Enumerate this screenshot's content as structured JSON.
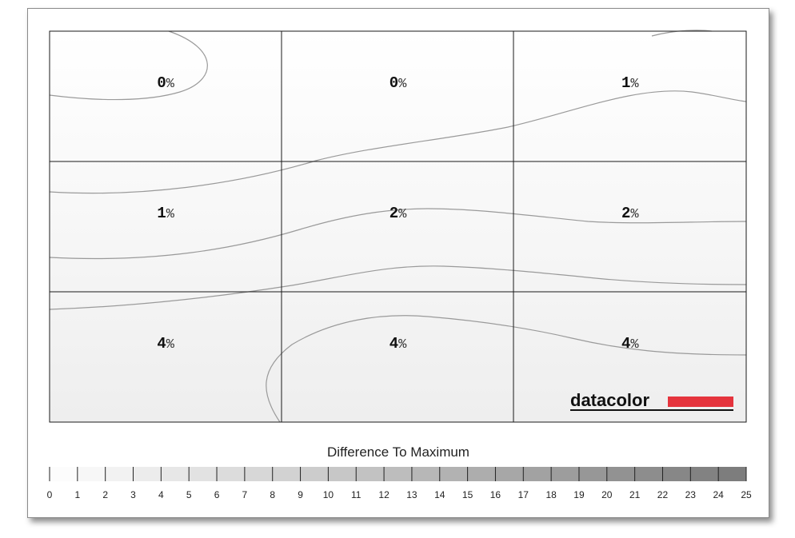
{
  "chart_data": {
    "type": "heatmap",
    "rows": 3,
    "cols": 3,
    "cells": [
      [
        "0",
        "0",
        "1"
      ],
      [
        "1",
        "2",
        "2"
      ],
      [
        "4",
        "4",
        "4"
      ]
    ],
    "unit": "%",
    "legend": {
      "title": "Difference To Maximum",
      "ticks": [
        "0",
        "1",
        "2",
        "3",
        "4",
        "5",
        "6",
        "7",
        "8",
        "9",
        "10",
        "11",
        "12",
        "13",
        "14",
        "15",
        "16",
        "17",
        "18",
        "19",
        "20",
        "21",
        "22",
        "23",
        "24",
        "25"
      ],
      "range": [
        0,
        25
      ]
    },
    "colors": {
      "low": "#ffffff",
      "high": "#7a7a7a",
      "contour": "#9a9a9a",
      "grid": "#1a1a1a"
    }
  },
  "brand": {
    "name": "datacolor",
    "accent": "#e5343d"
  }
}
